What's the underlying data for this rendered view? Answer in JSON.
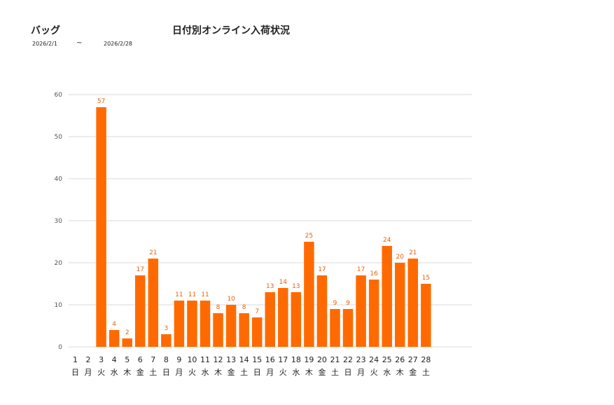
{
  "header": {
    "category": "バッグ",
    "title": "日付別オンライン入荷状況",
    "date_from": "2026/2/1",
    "tilde": "~",
    "date_to": "2026/2/28"
  },
  "colors": {
    "bar": "#ff6a00",
    "label": "#e8620a",
    "grid": "#d9d9d9"
  },
  "chart_data": {
    "type": "bar",
    "categories": [
      "1",
      "2",
      "3",
      "4",
      "5",
      "6",
      "7",
      "8",
      "9",
      "10",
      "11",
      "12",
      "13",
      "14",
      "15",
      "16",
      "17",
      "18",
      "19",
      "20",
      "21",
      "22",
      "23",
      "24",
      "25",
      "26",
      "27",
      "28"
    ],
    "weekdays": [
      "日",
      "月",
      "火",
      "水",
      "木",
      "金",
      "土",
      "日",
      "月",
      "火",
      "水",
      "木",
      "金",
      "土",
      "日",
      "月",
      "火",
      "水",
      "木",
      "金",
      "土",
      "日",
      "月",
      "火",
      "水",
      "木",
      "金",
      "土"
    ],
    "values": [
      0,
      0,
      57,
      4,
      2,
      17,
      21,
      3,
      11,
      11,
      11,
      8,
      10,
      8,
      7,
      13,
      14,
      13,
      25,
      17,
      9,
      9,
      17,
      16,
      24,
      20,
      21,
      15
    ],
    "value_labels": [
      "",
      "",
      "57",
      "4",
      "2",
      "17",
      "21",
      "3",
      "11",
      "11",
      "11",
      "8",
      "10",
      "8",
      "7",
      "13",
      "14",
      "13",
      "25",
      "17",
      "9",
      "9",
      "17",
      "16",
      "24",
      "20",
      "21",
      "15"
    ],
    "yticks": [
      0,
      10,
      20,
      30,
      40,
      50,
      60
    ],
    "ylim": [
      0,
      60
    ],
    "grid": true
  }
}
